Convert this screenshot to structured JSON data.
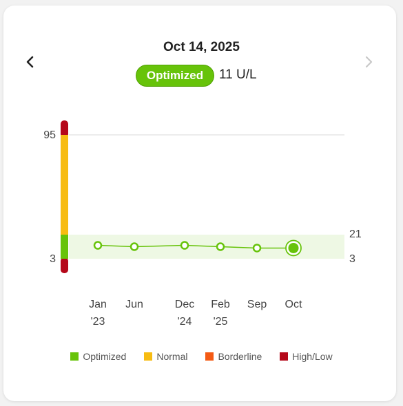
{
  "header": {
    "date": "Oct 14, 2025",
    "status": "Optimized",
    "reading": "11 U/L"
  },
  "icons": {
    "prev": "chevron-left-icon",
    "next": "chevron-right-icon"
  },
  "colors": {
    "optimized": "#67c30a",
    "normal": "#f7bc12",
    "borderline": "#f45a14",
    "high_low": "#b5081a",
    "optimized_band": "#eef8e4"
  },
  "chart_data": {
    "type": "line",
    "range_scale": {
      "labels": [
        "95",
        "3"
      ],
      "values": [
        95,
        3
      ]
    },
    "optimized_range": {
      "low": 3,
      "high": 21,
      "labels": [
        "21",
        "3"
      ]
    },
    "x": [
      "Jan '23",
      "Jun",
      "Dec '24",
      "Feb '25",
      "Sep",
      "Oct"
    ],
    "x_labels": [
      [
        "Jan",
        "'23"
      ],
      [
        "Jun",
        ""
      ],
      [
        "Dec",
        "'24"
      ],
      [
        "Feb",
        "'25"
      ],
      [
        "Sep",
        ""
      ],
      [
        "Oct",
        ""
      ]
    ],
    "values": [
      13,
      12,
      13,
      12,
      11,
      11
    ],
    "highlighted_index": 5
  },
  "legend": [
    {
      "label": "Optimized",
      "color": "#67c30a"
    },
    {
      "label": "Normal",
      "color": "#f7bc12"
    },
    {
      "label": "Borderline",
      "color": "#f45a14"
    },
    {
      "label": "High/Low",
      "color": "#b5081a"
    }
  ]
}
